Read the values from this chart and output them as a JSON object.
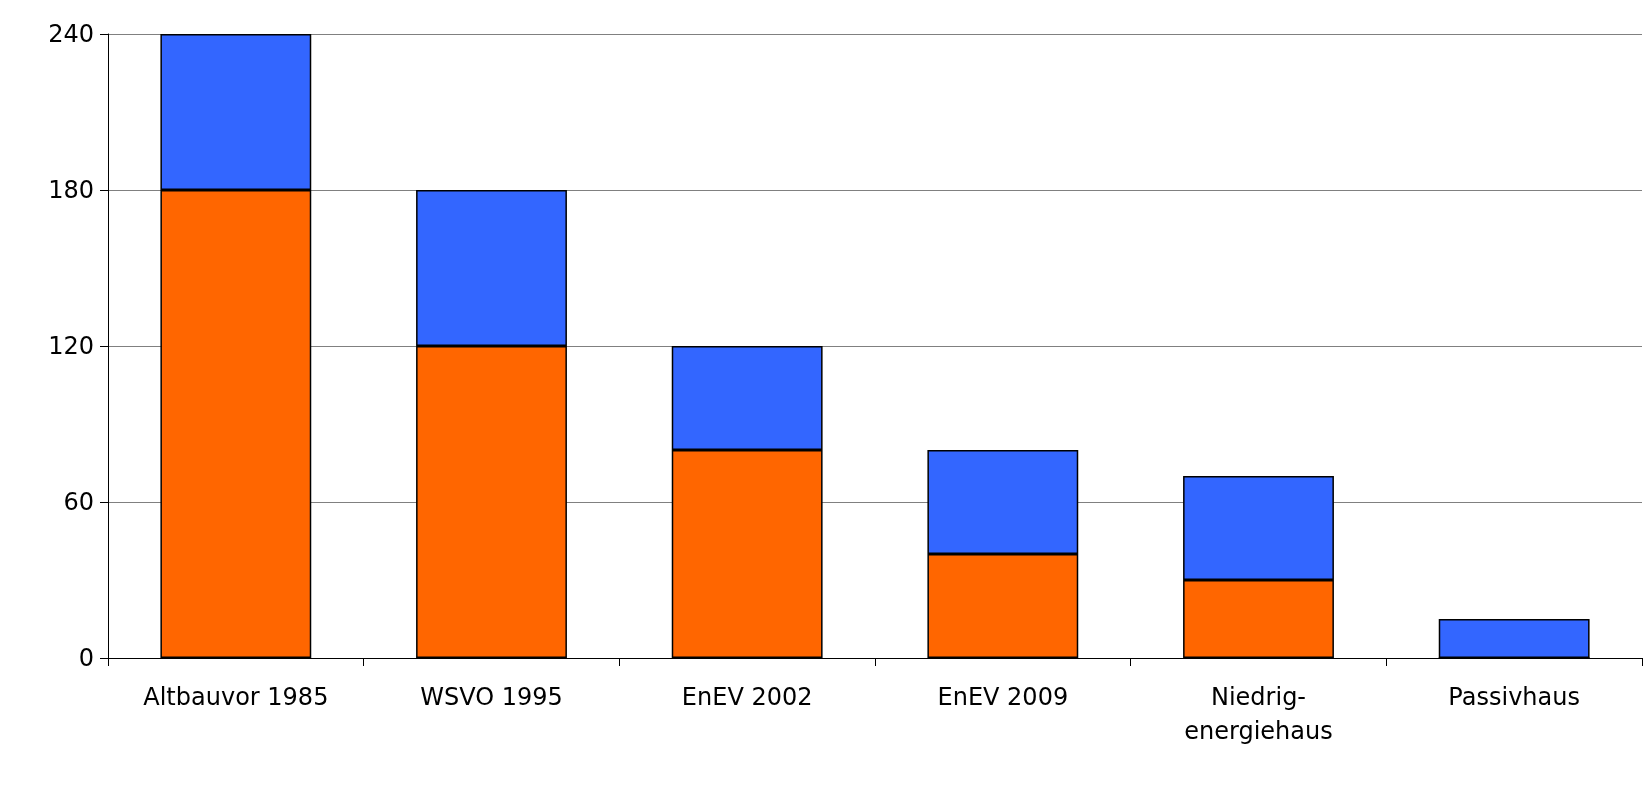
{
  "chart_data": {
    "type": "bar",
    "stacked": true,
    "categories": [
      "Altbauvor 1985",
      "WSVO 1995",
      "EnEV 2002",
      "EnEV 2009",
      "Niedrig-\nenergiehaus",
      "Passivhaus"
    ],
    "series": [
      {
        "color": "#ff6600",
        "values": [
          180,
          120,
          80,
          40,
          30,
          0
        ]
      },
      {
        "color": "#3366ff",
        "values": [
          60,
          60,
          40,
          40,
          40,
          15
        ]
      }
    ],
    "ylim": [
      0,
      240
    ],
    "yticks": [
      0,
      60,
      120,
      180,
      240
    ],
    "grid": "y"
  }
}
